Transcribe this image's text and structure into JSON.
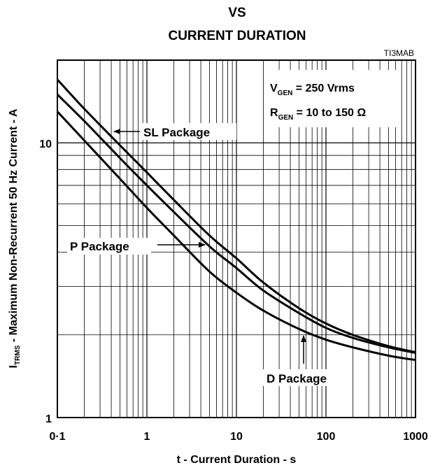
{
  "chart_data": {
    "type": "line",
    "title_lines": [
      "VS",
      "CURRENT DURATION"
    ],
    "figure_id": "TI3MAB",
    "xlabel": "t - Current Duration - s",
    "ylabel": {
      "symbol": "I",
      "subscript": "TRMS",
      "rest": " - Maximum  Non-Recurrent 50 Hz Current - A"
    },
    "x_scale": "log",
    "y_scale": "log",
    "xlim": [
      0.1,
      1000
    ],
    "ylim": [
      1,
      20
    ],
    "x_ticks": [
      {
        "value": 0.1,
        "label": "0·1"
      },
      {
        "value": 1,
        "label": "1"
      },
      {
        "value": 10,
        "label": "10"
      },
      {
        "value": 100,
        "label": "100"
      },
      {
        "value": 1000,
        "label": "1000"
      }
    ],
    "y_ticks": [
      {
        "value": 1,
        "label": "1"
      },
      {
        "value": 10,
        "label": "10"
      }
    ],
    "grid": true,
    "conditions": [
      {
        "symbol": "V",
        "subscript": "GEN",
        "text": " = 250 Vrms"
      },
      {
        "symbol": "R",
        "subscript": "GEN",
        "text": " = 10 to 150 Ω"
      }
    ],
    "series": [
      {
        "name": "SL Package",
        "x": [
          0.1,
          0.2,
          0.5,
          1,
          2,
          5,
          10,
          20,
          50,
          100,
          200,
          500,
          1000
        ],
        "y": [
          17.0,
          13.3,
          9.8,
          7.8,
          6.2,
          4.6,
          3.8,
          3.1,
          2.5,
          2.2,
          2.0,
          1.82,
          1.73
        ]
      },
      {
        "name": "P Package",
        "x": [
          0.1,
          0.2,
          0.5,
          1,
          2,
          5,
          10,
          20,
          50,
          100,
          200,
          500,
          1000
        ],
        "y": [
          15.0,
          12.0,
          8.8,
          7.0,
          5.6,
          4.2,
          3.5,
          2.9,
          2.4,
          2.12,
          1.95,
          1.8,
          1.72
        ]
      },
      {
        "name": "D Package",
        "x": [
          0.1,
          0.2,
          0.5,
          1,
          2,
          5,
          10,
          20,
          50,
          100,
          200,
          500,
          1000
        ],
        "y": [
          13.0,
          10.2,
          7.4,
          5.8,
          4.6,
          3.4,
          2.85,
          2.45,
          2.1,
          1.92,
          1.8,
          1.68,
          1.62
        ]
      }
    ],
    "annotations": [
      {
        "text": "SL Package",
        "points_to": "SL Package"
      },
      {
        "text": "P Package",
        "points_to": "P Package"
      },
      {
        "text": "D Package",
        "points_to": "D Package"
      }
    ]
  }
}
